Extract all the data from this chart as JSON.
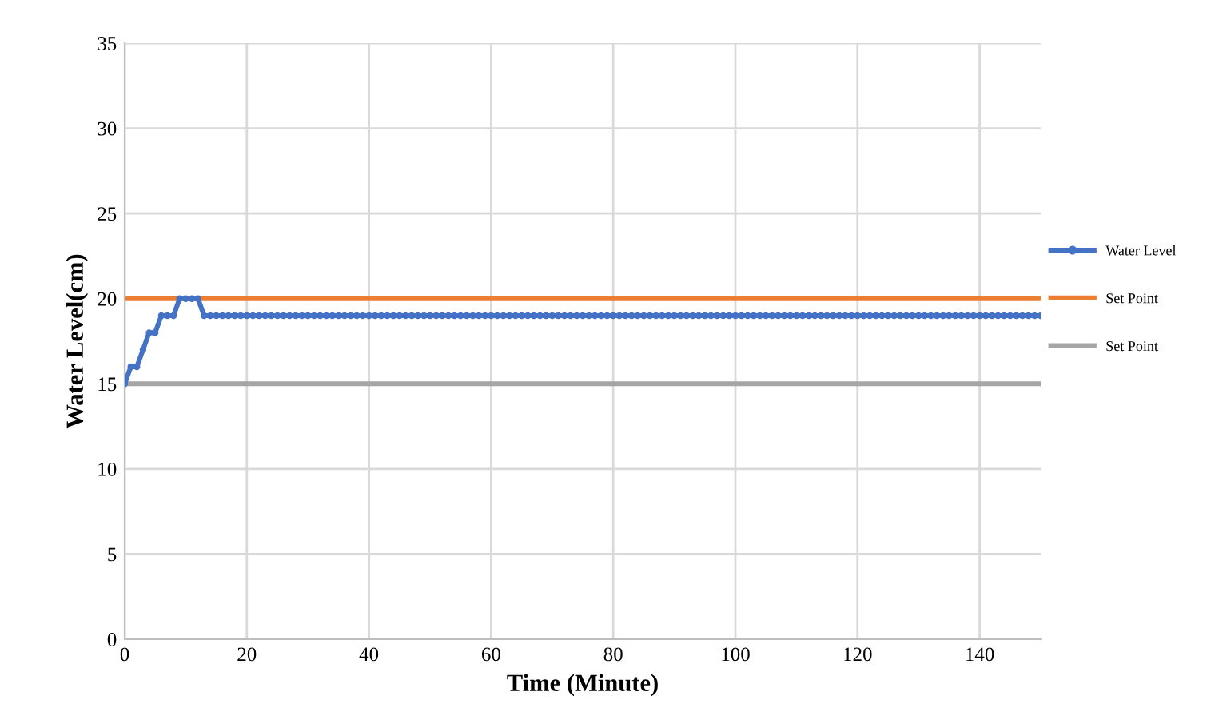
{
  "chart_data": {
    "type": "line",
    "xlabel": "Time (Minute)",
    "ylabel": "Water Level(cm)",
    "x": [
      0,
      1,
      2,
      3,
      4,
      5,
      6,
      7,
      8,
      9,
      10,
      11,
      12,
      13,
      14,
      15,
      16,
      17,
      18,
      19,
      20,
      21,
      22,
      23,
      24,
      25,
      26,
      27,
      28,
      29,
      30,
      31,
      32,
      33,
      34,
      35,
      36,
      37,
      38,
      39,
      40,
      41,
      42,
      43,
      44,
      45,
      46,
      47,
      48,
      49,
      50,
      51,
      52,
      53,
      54,
      55,
      56,
      57,
      58,
      59,
      60,
      61,
      62,
      63,
      64,
      65,
      66,
      67,
      68,
      69,
      70,
      71,
      72,
      73,
      74,
      75,
      76,
      77,
      78,
      79,
      80,
      81,
      82,
      83,
      84,
      85,
      86,
      87,
      88,
      89,
      90,
      91,
      92,
      93,
      94,
      95,
      96,
      97,
      98,
      99,
      100,
      101,
      102,
      103,
      104,
      105,
      106,
      107,
      108,
      109,
      110,
      111,
      112,
      113,
      114,
      115,
      116,
      117,
      118,
      119,
      120,
      121,
      122,
      123,
      124,
      125,
      126,
      127,
      128,
      129,
      130,
      131,
      132,
      133,
      134,
      135,
      136,
      137,
      138,
      139,
      140,
      141,
      142,
      143,
      144,
      145,
      146,
      147,
      148,
      149,
      150
    ],
    "series": [
      {
        "name": "Water Level",
        "color": "#4472c4",
        "values": [
          15,
          16,
          16,
          17,
          18,
          18,
          19,
          19,
          19,
          20,
          20,
          20,
          20,
          19,
          19,
          19,
          19,
          19,
          19,
          19,
          19,
          19,
          19,
          19,
          19,
          19,
          19,
          19,
          19,
          19,
          19,
          19,
          19,
          19,
          19,
          19,
          19,
          19,
          19,
          19,
          19,
          19,
          19,
          19,
          19,
          19,
          19,
          19,
          19,
          19,
          19,
          19,
          19,
          19,
          19,
          19,
          19,
          19,
          19,
          19,
          19,
          19,
          19,
          19,
          19,
          19,
          19,
          19,
          19,
          19,
          19,
          19,
          19,
          19,
          19,
          19,
          19,
          19,
          19,
          19,
          19,
          19,
          19,
          19,
          19,
          19,
          19,
          19,
          19,
          19,
          19,
          19,
          19,
          19,
          19,
          19,
          19,
          19,
          19,
          19,
          19,
          19,
          19,
          19,
          19,
          19,
          19,
          19,
          19,
          19,
          19,
          19,
          19,
          19,
          19,
          19,
          19,
          19,
          19,
          19,
          19,
          19,
          19,
          19,
          19,
          19,
          19,
          19,
          19,
          19,
          19,
          19,
          19,
          19,
          19,
          19,
          19,
          19,
          19,
          19,
          19,
          19,
          19,
          19,
          19,
          19,
          19,
          19,
          19,
          19,
          19
        ]
      }
    ],
    "ref_lines": [
      {
        "axis": "y",
        "value": 20,
        "label": "Set Point",
        "color": "#ed7d31"
      },
      {
        "axis": "y",
        "value": 15,
        "label": "Set Point",
        "color": "#a5a5a5"
      }
    ],
    "xlim": [
      0,
      150
    ],
    "xticks": [
      0,
      20,
      40,
      60,
      80,
      100,
      120,
      140
    ],
    "ylim": [
      0,
      35
    ],
    "yticks": [
      0,
      5,
      10,
      15,
      20,
      25,
      30,
      35
    ],
    "grid": true,
    "legend": "right",
    "marker": "circle"
  }
}
